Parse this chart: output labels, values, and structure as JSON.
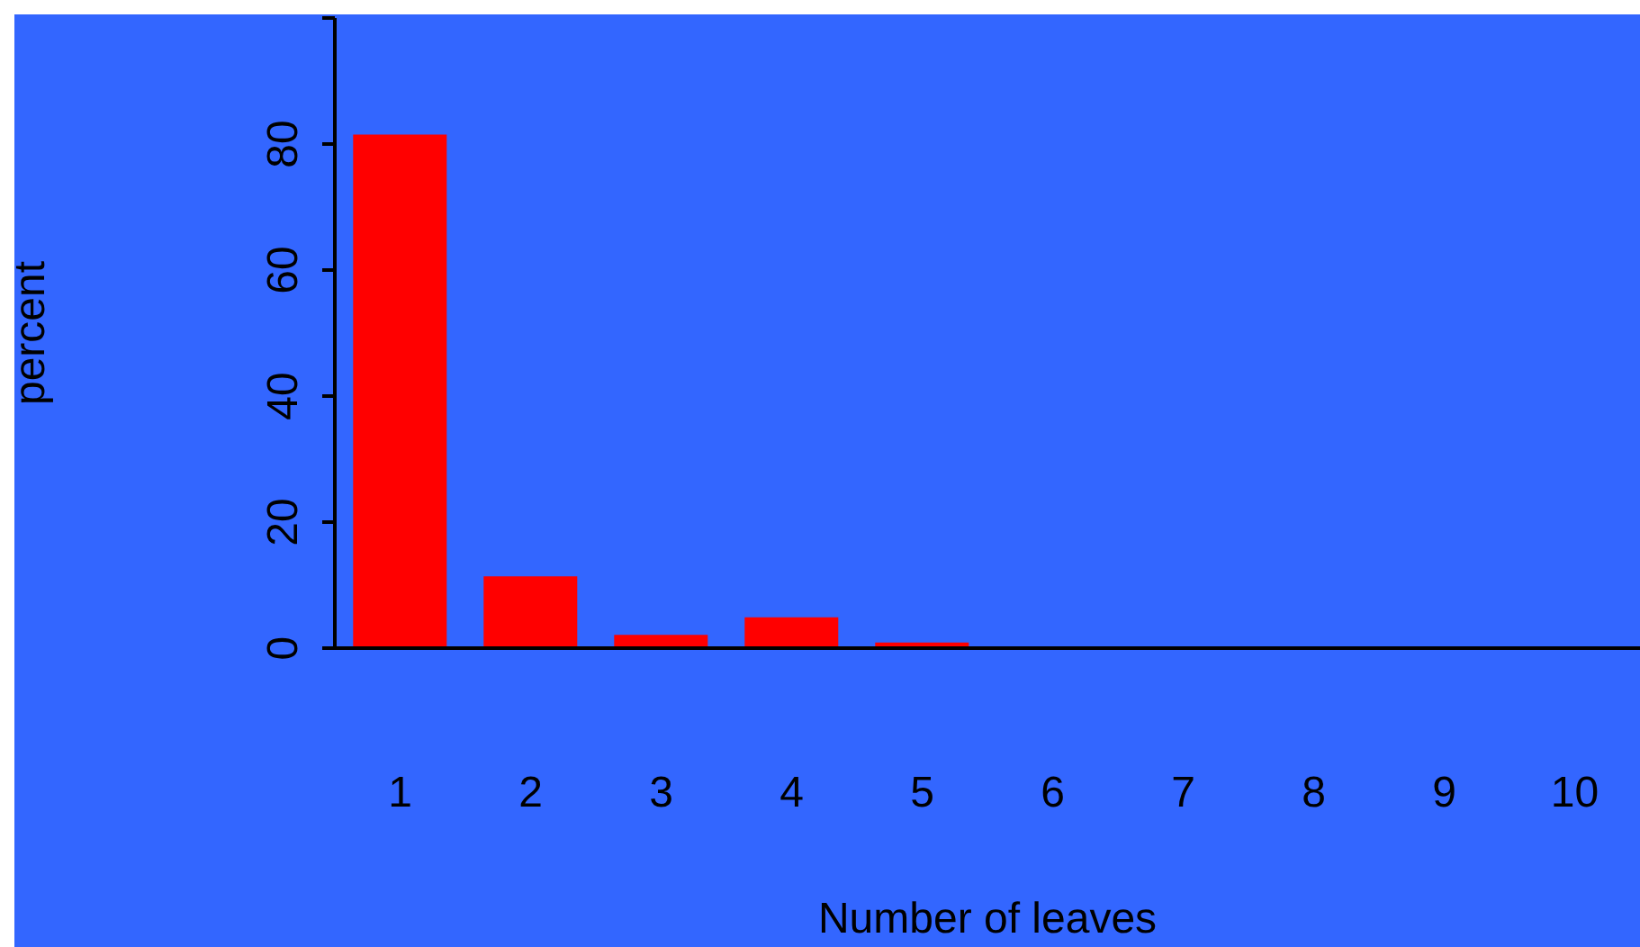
{
  "chart_data": {
    "type": "bar",
    "xlabel": "Number of leaves",
    "ylabel": "percent",
    "categories": [
      "1",
      "2",
      "3",
      "4",
      "5",
      "6",
      "7",
      "8",
      "9",
      "10"
    ],
    "values": [
      81.5,
      11.4,
      2.1,
      4.9,
      0.9,
      0,
      0,
      0,
      0,
      0
    ],
    "color": "#ff0000",
    "ylim": [
      0,
      100
    ],
    "yticks": [
      0,
      20,
      40,
      60,
      80,
      {
        "value": 100,
        "label": null
      }
    ]
  }
}
